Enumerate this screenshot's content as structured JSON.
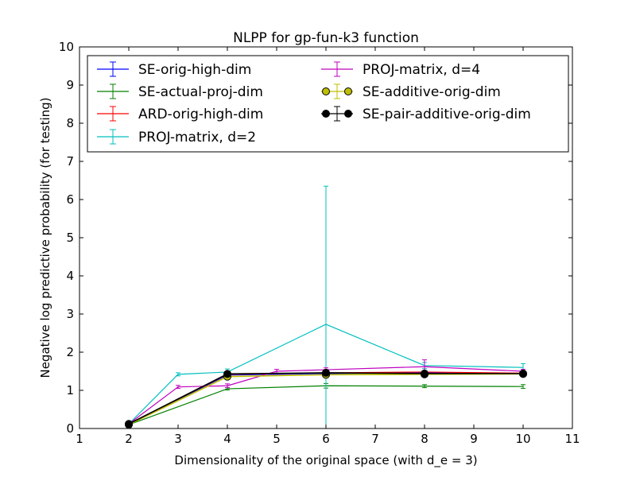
{
  "chart_data": {
    "type": "line",
    "title": "NLPP for gp-fun-k3 function",
    "xlabel": "Dimensionality of the original space (with d_e = 3)",
    "ylabel": "Negative log predictive probability (for testing)",
    "xlim": [
      1,
      11
    ],
    "ylim": [
      0,
      10
    ],
    "xticks": [
      1,
      2,
      3,
      4,
      5,
      6,
      7,
      8,
      9,
      10,
      11
    ],
    "yticks": [
      0,
      1,
      2,
      3,
      4,
      5,
      6,
      7,
      8,
      9,
      10
    ],
    "grid": false,
    "legend": "top, two columns",
    "series": [
      {
        "name": "SE-orig-high-dim",
        "color": "#0000ff",
        "marker": "none",
        "x": [
          2,
          4,
          6,
          8,
          10
        ],
        "y": [
          0.12,
          1.4,
          1.44,
          1.46,
          1.44
        ],
        "err": [
          0.02,
          0.03,
          0.04,
          0.03,
          0.03
        ]
      },
      {
        "name": "SE-actual-proj-dim",
        "color": "#008000",
        "marker": "none",
        "x": [
          2,
          4,
          6,
          8,
          10
        ],
        "y": [
          0.1,
          1.04,
          1.12,
          1.11,
          1.1
        ],
        "err": [
          0.02,
          0.03,
          0.06,
          0.04,
          0.05
        ]
      },
      {
        "name": "ARD-orig-high-dim",
        "color": "#ff0000",
        "marker": "none",
        "x": [
          2,
          4,
          6,
          8,
          10
        ],
        "y": [
          0.12,
          1.42,
          1.46,
          1.48,
          1.45
        ],
        "err": [
          0.02,
          0.03,
          0.04,
          0.03,
          0.03
        ]
      },
      {
        "name": "PROJ-matrix, d=2",
        "color": "#00bfbf",
        "marker": "none",
        "x": [
          2,
          3,
          4,
          6,
          8,
          10
        ],
        "y": [
          0.12,
          1.42,
          1.48,
          2.73,
          1.65,
          1.6
        ],
        "err": [
          0.02,
          0.04,
          0.08,
          3.62,
          0.08,
          0.1
        ]
      },
      {
        "name": "PROJ-matrix, d=4",
        "color": "#bf00bf",
        "marker": "none",
        "x": [
          2,
          3,
          4,
          5,
          6,
          8,
          10
        ],
        "y": [
          0.12,
          1.09,
          1.12,
          1.5,
          1.54,
          1.62,
          1.5
        ],
        "err": [
          0.02,
          0.04,
          0.05,
          0.05,
          0.05,
          0.18,
          0.05
        ]
      },
      {
        "name": "SE-additive-orig-dim",
        "color": "#bfbf00",
        "marker": "circle",
        "x": [
          2,
          4,
          6,
          8,
          10
        ],
        "y": [
          0.1,
          1.36,
          1.41,
          1.42,
          1.43
        ],
        "err": [
          0.02,
          0.03,
          0.04,
          0.03,
          0.03
        ]
      },
      {
        "name": "SE-pair-additive-orig-dim",
        "color": "#000000",
        "marker": "circle",
        "x": [
          2,
          4,
          6,
          8,
          10
        ],
        "y": [
          0.12,
          1.43,
          1.46,
          1.44,
          1.44
        ],
        "err": [
          0.02,
          0.03,
          0.04,
          0.03,
          0.03
        ]
      }
    ]
  }
}
